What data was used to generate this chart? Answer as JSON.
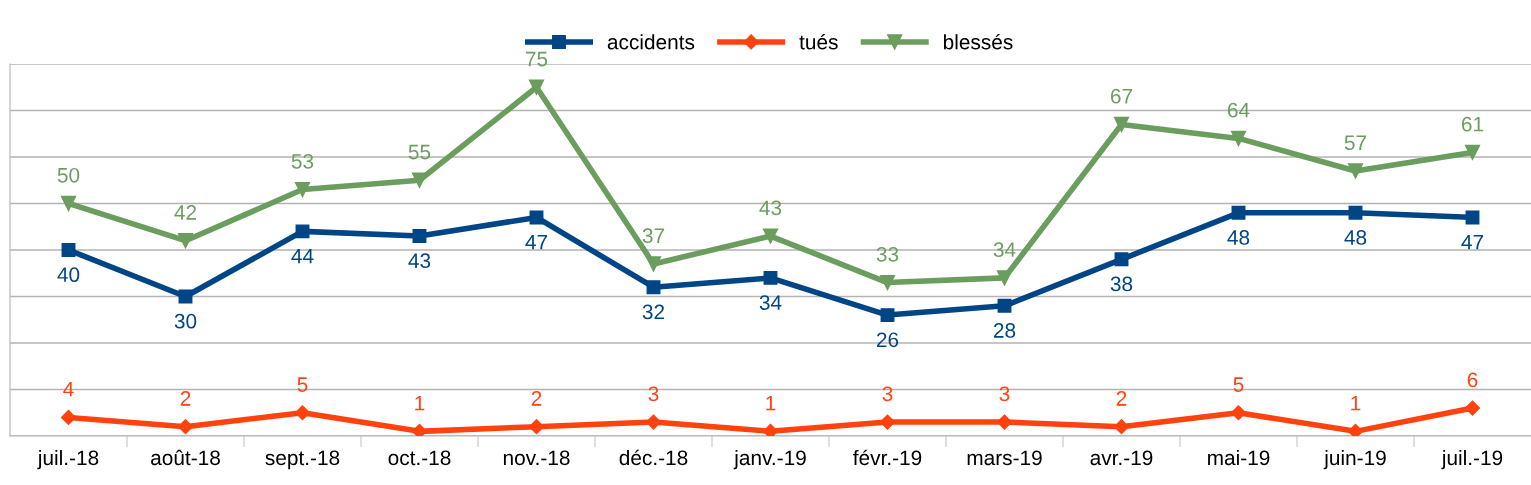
{
  "chart_data": {
    "type": "line",
    "categories": [
      "juil.-18",
      "août-18",
      "sept.-18",
      "oct.-18",
      "nov.-18",
      "déc.-18",
      "janv.-19",
      "févr.-19",
      "mars-19",
      "avr.-19",
      "mai-19",
      "juin-19",
      "juil.-19"
    ],
    "series": [
      {
        "name": "accidents",
        "color": "#004586",
        "marker": "square",
        "values": [
          40,
          30,
          44,
          43,
          47,
          32,
          34,
          26,
          28,
          38,
          48,
          48,
          47
        ]
      },
      {
        "name": "tués",
        "color": "#ff420e",
        "marker": "diamond",
        "values": [
          4,
          2,
          5,
          1,
          2,
          3,
          1,
          3,
          3,
          2,
          5,
          1,
          6
        ]
      },
      {
        "name": "blessés",
        "color": "#6b9d5e",
        "marker": "triangle",
        "values": [
          50,
          42,
          53,
          55,
          75,
          37,
          43,
          33,
          34,
          67,
          64,
          57,
          61
        ]
      }
    ],
    "ylim": [
      0,
      80
    ],
    "yticks": [
      {
        "value": 0,
        "label": null
      },
      {
        "value": 10,
        "label": null
      },
      {
        "value": 20,
        "label": null
      },
      {
        "value": 30,
        "label": null
      },
      {
        "value": 40,
        "label": null
      },
      {
        "value": 50,
        "label": null
      },
      {
        "value": 60,
        "label": null
      },
      {
        "value": 70,
        "label": null
      },
      {
        "value": 80,
        "label": null
      }
    ],
    "tick_labels": "x",
    "grid": "y",
    "legend": "top",
    "data_labels": true,
    "line_style": "solid"
  }
}
